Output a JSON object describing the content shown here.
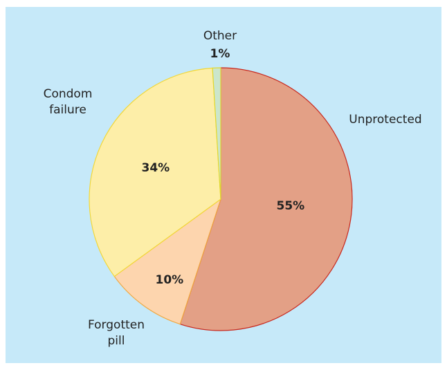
{
  "chart_data": {
    "type": "pie",
    "categories": [
      "Unprotected",
      "Forgotten pill",
      "Condom failure",
      "Other"
    ],
    "values": [
      55,
      10,
      34,
      1
    ],
    "value_labels": [
      "55%",
      "10%",
      "34%",
      "1%"
    ],
    "colors": [
      "#e3a086",
      "#fdd5ae",
      "#fdeea8",
      "#cbe6cc"
    ],
    "edge_colors": [
      "#c8281e",
      "#f0a840",
      "#f2d838",
      "#e0d830"
    ]
  }
}
